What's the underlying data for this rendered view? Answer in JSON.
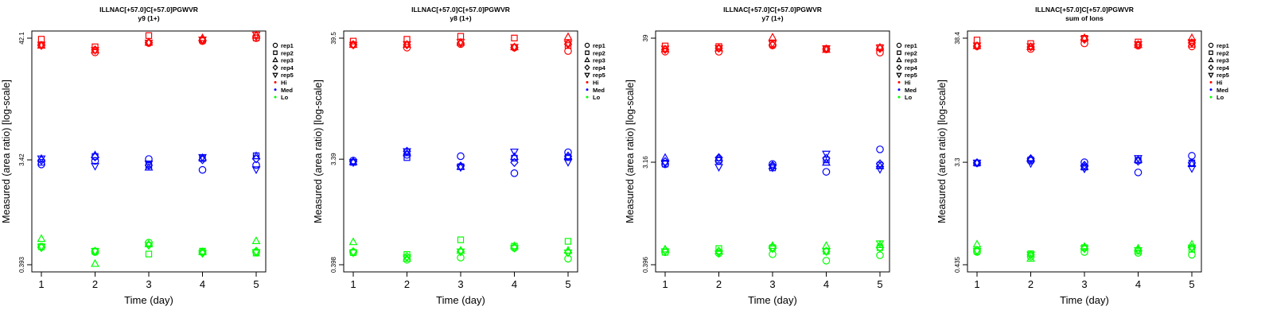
{
  "figure": {
    "xlabel": "Time (day)",
    "ylabel": "Measured (area ratio) [log-scale]",
    "legend": {
      "placement": "right",
      "shape_entries": [
        {
          "label": "rep1",
          "symbol": "circle"
        },
        {
          "label": "rep2",
          "symbol": "square"
        },
        {
          "label": "rep3",
          "symbol": "triangle-up"
        },
        {
          "label": "rep4",
          "symbol": "diamond"
        },
        {
          "label": "rep5",
          "symbol": "triangle-down"
        }
      ],
      "color_entries": [
        {
          "label": "Hi",
          "color": "#ff0000"
        },
        {
          "label": "Med",
          "color": "#0000ff"
        },
        {
          "label": "Lo",
          "color": "#00ff00"
        }
      ]
    }
  },
  "chart_data": [
    {
      "type": "scatter",
      "title": "ILLNAC[+57.0]C[+57.0]PGWVR",
      "subtitle": "y9 (1+)",
      "xlabel": "Time (day)",
      "ylabel": "Measured (area ratio) [log-scale]",
      "x": [
        1,
        2,
        3,
        4,
        5
      ],
      "xlim": [
        1,
        5
      ],
      "ylim": [
        0.393,
        42.1
      ],
      "log_y": true,
      "yticks": [
        "42.1",
        "3.42",
        "0.393"
      ],
      "yticks_values": [
        42.1,
        3.42,
        0.393
      ],
      "series": [
        {
          "level": "Hi",
          "rep": "rep1",
          "values": [
            36.5,
            31.4,
            38.1,
            39.6,
            42.1
          ]
        },
        {
          "level": "Hi",
          "rep": "rep2",
          "values": [
            41.2,
            35.2,
            44.4,
            40.5,
            42.3
          ]
        },
        {
          "level": "Hi",
          "rep": "rep3",
          "values": [
            36.1,
            32.7,
            38.4,
            42.1,
            44.6
          ]
        },
        {
          "level": "Hi",
          "rep": "rep4",
          "values": [
            36.2,
            33.1,
            38.5,
            40.4,
            43.9
          ]
        },
        {
          "level": "Hi",
          "rep": "rep5",
          "values": [
            36.8,
            32.9,
            38.4,
            40.8,
            45.2
          ]
        },
        {
          "level": "Med",
          "rep": "rep1",
          "values": [
            3.11,
            3.35,
            3.48,
            2.78,
            3.07
          ]
        },
        {
          "level": "Med",
          "rep": "rep2",
          "values": [
            3.25,
            3.67,
            3.05,
            3.52,
            3.72
          ]
        },
        {
          "level": "Med",
          "rep": "rep3",
          "values": [
            3.49,
            3.76,
            2.92,
            3.55,
            3.69
          ]
        },
        {
          "level": "Med",
          "rep": "rep4",
          "values": [
            3.39,
            3.63,
            3.06,
            3.43,
            3.49
          ]
        },
        {
          "level": "Med",
          "rep": "rep5",
          "values": [
            3.52,
            3.02,
            3.17,
            3.62,
            2.81
          ]
        },
        {
          "level": "Lo",
          "rep": "rep1",
          "values": [
            0.57,
            0.51,
            0.62,
            0.51,
            0.51
          ]
        },
        {
          "level": "Lo",
          "rep": "rep2",
          "values": [
            0.57,
            0.52,
            0.49,
            0.52,
            0.5
          ]
        },
        {
          "level": "Lo",
          "rep": "rep3",
          "values": [
            0.67,
            0.4,
            0.6,
            0.51,
            0.64
          ]
        },
        {
          "level": "Lo",
          "rep": "rep4",
          "values": [
            0.56,
            0.52,
            0.59,
            0.5,
            0.52
          ]
        },
        {
          "level": "Lo",
          "rep": "rep5",
          "values": [
            0.57,
            0.52,
            0.59,
            0.5,
            0.51
          ]
        }
      ]
    },
    {
      "type": "scatter",
      "title": "ILLNAC[+57.0]C[+57.0]PGWVR",
      "subtitle": "y8 (1+)",
      "xlabel": "Time (day)",
      "ylabel": "Measured (area ratio) [log-scale]",
      "x": [
        1,
        2,
        3,
        4,
        5
      ],
      "xlim": [
        1,
        5
      ],
      "ylim": [
        0.398,
        39.5
      ],
      "log_y": true,
      "yticks": [
        "39.5",
        "3.39",
        "0.398"
      ],
      "yticks_values": [
        39.5,
        3.39,
        0.398
      ],
      "series": [
        {
          "level": "Hi",
          "rep": "rep1",
          "values": [
            34.6,
            32.6,
            35.0,
            32.6,
            30.4
          ]
        },
        {
          "level": "Hi",
          "rep": "rep2",
          "values": [
            37.2,
            38.6,
            41.0,
            39.6,
            34.0
          ]
        },
        {
          "level": "Hi",
          "rep": "rep3",
          "values": [
            34.5,
            34.6,
            36.1,
            32.9,
            40.4
          ]
        },
        {
          "level": "Hi",
          "rep": "rep4",
          "values": [
            34.6,
            34.5,
            35.8,
            32.7,
            35.0
          ]
        },
        {
          "level": "Hi",
          "rep": "rep5",
          "values": [
            34.5,
            34.9,
            36.5,
            33.0,
            35.5
          ]
        },
        {
          "level": "Med",
          "rep": "rep1",
          "values": [
            3.3,
            3.7,
            3.6,
            2.55,
            3.9
          ]
        },
        {
          "level": "Med",
          "rep": "rep2",
          "values": [
            3.18,
            3.5,
            2.91,
            3.46,
            3.5
          ]
        },
        {
          "level": "Med",
          "rep": "rep3",
          "values": [
            3.2,
            3.82,
            2.9,
            3.55,
            3.6
          ]
        },
        {
          "level": "Med",
          "rep": "rep4",
          "values": [
            3.22,
            3.98,
            2.95,
            3.17,
            3.6
          ]
        },
        {
          "level": "Med",
          "rep": "rep5",
          "values": [
            3.18,
            3.98,
            2.88,
            3.95,
            3.2
          ]
        },
        {
          "level": "Lo",
          "rep": "rep1",
          "values": [
            0.51,
            0.44,
            0.46,
            0.56,
            0.45
          ]
        },
        {
          "level": "Lo",
          "rep": "rep2",
          "values": [
            0.51,
            0.49,
            0.66,
            0.58,
            0.64
          ]
        },
        {
          "level": "Lo",
          "rep": "rep3",
          "values": [
            0.63,
            0.45,
            0.53,
            0.58,
            0.53
          ]
        },
        {
          "level": "Lo",
          "rep": "rep4",
          "values": [
            0.52,
            0.47,
            0.52,
            0.57,
            0.51
          ]
        },
        {
          "level": "Lo",
          "rep": "rep5",
          "values": [
            0.51,
            0.46,
            0.52,
            0.56,
            0.51
          ]
        }
      ]
    },
    {
      "type": "scatter",
      "title": "ILLNAC[+57.0]C[+57.0]PGWVR",
      "subtitle": "y7 (1+)",
      "xlabel": "Time (day)",
      "ylabel": "Measured (area ratio) [log-scale]",
      "x": [
        1,
        2,
        3,
        4,
        5
      ],
      "xlim": [
        1,
        5
      ],
      "ylim": [
        0.396,
        39
      ],
      "log_y": true,
      "yticks": [
        "39",
        "3.16",
        "0.396"
      ],
      "yticks_values": [
        39,
        3.16,
        0.396
      ],
      "series": [
        {
          "level": "Hi",
          "rep": "rep1",
          "values": [
            29.7,
            29.6,
            33.6,
            31.1,
            29.1
          ]
        },
        {
          "level": "Hi",
          "rep": "rep2",
          "values": [
            33.3,
            32.9,
            34.7,
            31.6,
            32.2
          ]
        },
        {
          "level": "Hi",
          "rep": "rep3",
          "values": [
            31.1,
            31.7,
            39.5,
            30.8,
            32.2
          ]
        },
        {
          "level": "Hi",
          "rep": "rep4",
          "values": [
            31.0,
            31.8,
            34.0,
            31.4,
            31.6
          ]
        },
        {
          "level": "Hi",
          "rep": "rep5",
          "values": [
            31.5,
            31.9,
            35.0,
            31.7,
            32.2
          ]
        },
        {
          "level": "Med",
          "rep": "rep1",
          "values": [
            3.03,
            3.25,
            3.05,
            2.6,
            4.1
          ]
        },
        {
          "level": "Med",
          "rep": "rep2",
          "values": [
            3.05,
            3.31,
            2.82,
            3.31,
            2.98
          ]
        },
        {
          "level": "Med",
          "rep": "rep3",
          "values": [
            3.45,
            3.42,
            2.91,
            3.13,
            2.92
          ]
        },
        {
          "level": "Med",
          "rep": "rep4",
          "values": [
            3.2,
            3.47,
            2.96,
            3.42,
            3.06
          ]
        },
        {
          "level": "Med",
          "rep": "rep5",
          "values": [
            3.09,
            2.87,
            2.84,
            3.75,
            2.75
          ]
        },
        {
          "level": "Lo",
          "rep": "rep1",
          "values": [
            0.51,
            0.5,
            0.49,
            0.43,
            0.48
          ]
        },
        {
          "level": "Lo",
          "rep": "rep2",
          "values": [
            0.51,
            0.55,
            0.56,
            0.52,
            0.56
          ]
        },
        {
          "level": "Lo",
          "rep": "rep3",
          "values": [
            0.54,
            0.52,
            0.58,
            0.58,
            0.59
          ]
        },
        {
          "level": "Lo",
          "rep": "rep4",
          "values": [
            0.53,
            0.52,
            0.56,
            0.52,
            0.56
          ]
        },
        {
          "level": "Lo",
          "rep": "rep5",
          "values": [
            0.52,
            0.5,
            0.55,
            0.52,
            0.61
          ]
        }
      ]
    },
    {
      "type": "scatter",
      "title": "ILLNAC[+57.0]C[+57.0]PGWVR",
      "subtitle": "sum of Ions",
      "xlabel": "Time (day)",
      "ylabel": "Measured (area ratio) [log-scale]",
      "x": [
        1,
        2,
        3,
        4,
        5
      ],
      "xlim": [
        1,
        5
      ],
      "ylim": [
        0.435,
        38.4
      ],
      "log_y": true,
      "yticks": [
        "38.4",
        "3.3",
        "0.435"
      ],
      "yticks_values": [
        38.4,
        3.3,
        0.435
      ],
      "series": [
        {
          "level": "Hi",
          "rep": "rep1",
          "values": [
            32.7,
            31.0,
            34.6,
            33.1,
            32.6
          ]
        },
        {
          "level": "Hi",
          "rep": "rep2",
          "values": [
            37.0,
            34.5,
            38.3,
            35.6,
            34.0
          ]
        },
        {
          "level": "Hi",
          "rep": "rep3",
          "values": [
            32.9,
            32.2,
            38.5,
            33.6,
            38.5
          ]
        },
        {
          "level": "Hi",
          "rep": "rep4",
          "values": [
            32.8,
            32.3,
            37.5,
            33.8,
            35.0
          ]
        },
        {
          "level": "Hi",
          "rep": "rep5",
          "values": [
            33.2,
            32.7,
            38.0,
            34.0,
            35.4
          ]
        },
        {
          "level": "Med",
          "rep": "rep1",
          "values": [
            3.25,
            3.4,
            3.3,
            2.7,
            3.75
          ]
        },
        {
          "level": "Med",
          "rep": "rep2",
          "values": [
            3.25,
            3.45,
            3.0,
            3.43,
            3.26
          ]
        },
        {
          "level": "Med",
          "rep": "rep3",
          "values": [
            3.26,
            3.52,
            3.01,
            3.46,
            3.19
          ]
        },
        {
          "level": "Med",
          "rep": "rep4",
          "values": [
            3.26,
            3.54,
            3.11,
            3.37,
            3.26
          ]
        },
        {
          "level": "Med",
          "rep": "rep5",
          "values": [
            3.27,
            3.24,
            2.91,
            3.58,
            2.93
          ]
        },
        {
          "level": "Lo",
          "rep": "rep1",
          "values": [
            0.56,
            0.51,
            0.56,
            0.55,
            0.53
          ]
        },
        {
          "level": "Lo",
          "rep": "rep2",
          "values": [
            0.57,
            0.54,
            0.61,
            0.57,
            0.59
          ]
        },
        {
          "level": "Lo",
          "rep": "rep3",
          "values": [
            0.65,
            0.49,
            0.62,
            0.6,
            0.65
          ]
        },
        {
          "level": "Lo",
          "rep": "rep4",
          "values": [
            0.58,
            0.53,
            0.6,
            0.58,
            0.61
          ]
        },
        {
          "level": "Lo",
          "rep": "rep5",
          "values": [
            0.57,
            0.53,
            0.6,
            0.58,
            0.61
          ]
        }
      ]
    }
  ]
}
